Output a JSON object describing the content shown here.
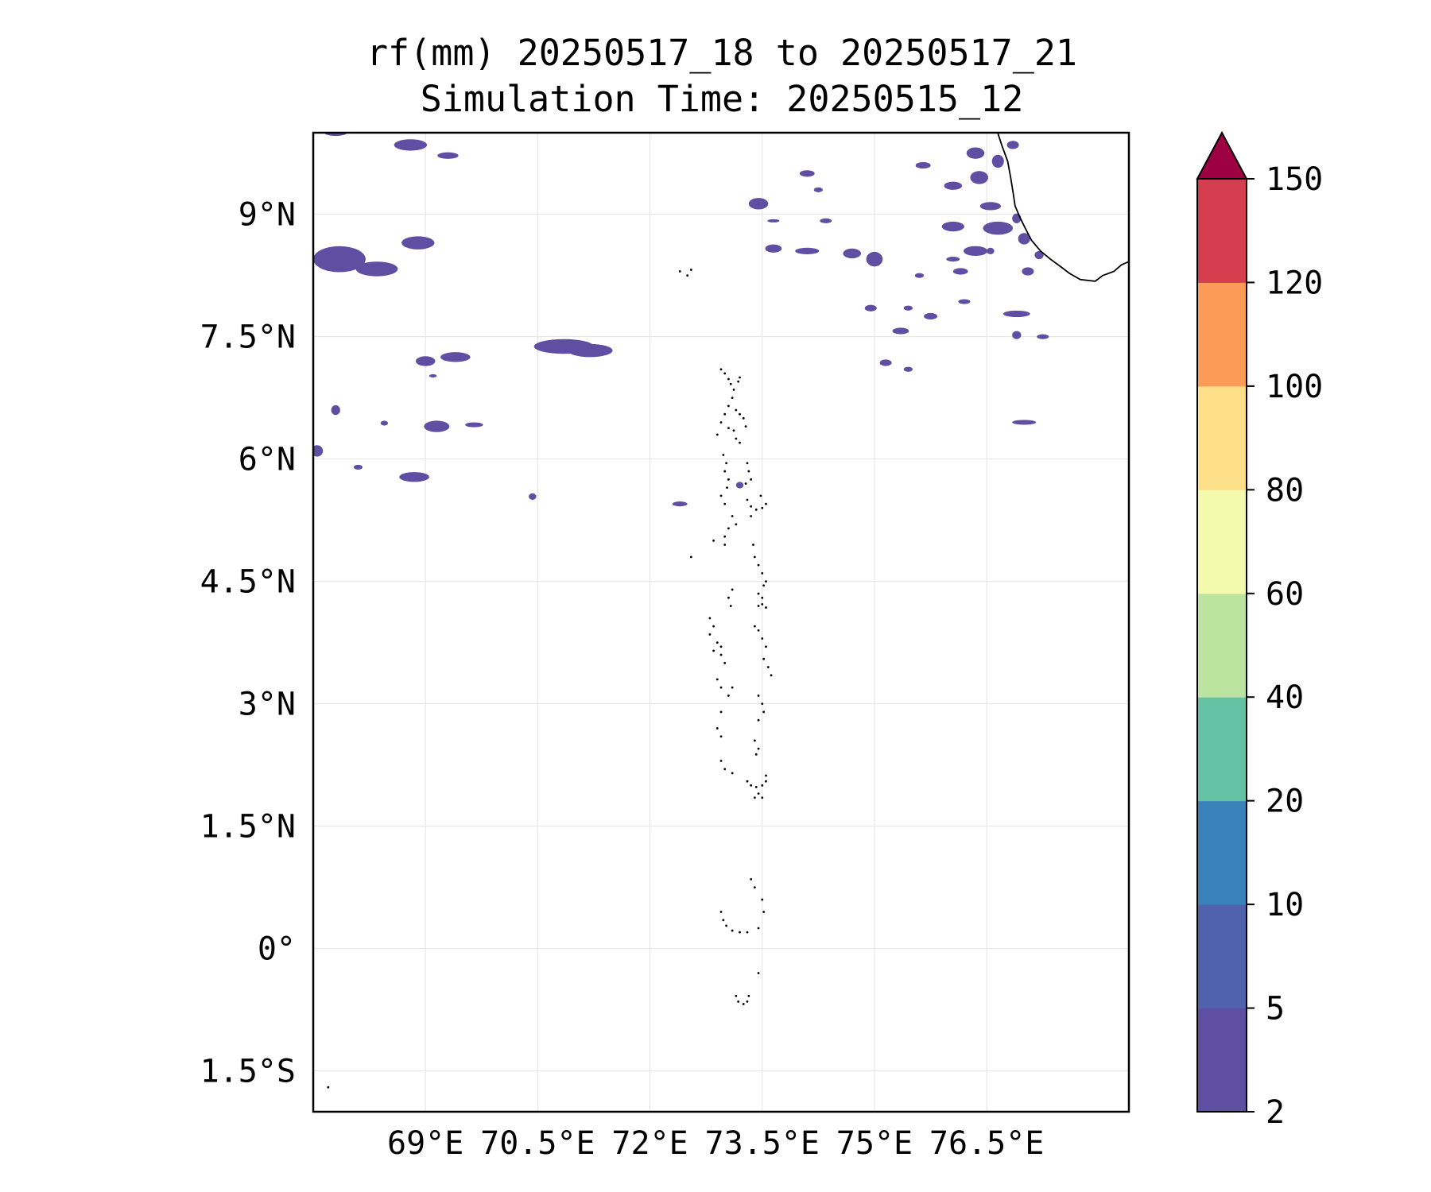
{
  "title": {
    "line1": "rf(mm) 20250517_18 to 20250517_21",
    "line2": "Simulation Time: 20250515_12"
  },
  "map": {
    "lon_range": [
      67.5,
      78.4
    ],
    "lat_range": [
      -2.0,
      10.0
    ],
    "x_ticks": [
      {
        "value": 69.0,
        "label": "69°E"
      },
      {
        "value": 70.5,
        "label": "70.5°E"
      },
      {
        "value": 72.0,
        "label": "72°E"
      },
      {
        "value": 73.5,
        "label": "73.5°E"
      },
      {
        "value": 75.0,
        "label": "75°E"
      },
      {
        "value": 76.5,
        "label": "76.5°E"
      }
    ],
    "y_ticks": [
      {
        "value": 9.0,
        "label": "9°N"
      },
      {
        "value": 7.5,
        "label": "7.5°N"
      },
      {
        "value": 6.0,
        "label": "6°N"
      },
      {
        "value": 4.5,
        "label": "4.5°N"
      },
      {
        "value": 3.0,
        "label": "3°N"
      },
      {
        "value": 1.5,
        "label": "1.5°N"
      },
      {
        "value": 0.0,
        "label": "0°"
      },
      {
        "value": -1.5,
        "label": "1.5°S"
      }
    ],
    "gridlines": true,
    "rain_color": "#5e4fa2",
    "rain_cells": [
      [
        67.8,
        10.0,
        0.15,
        0.04
      ],
      [
        68.8,
        9.85,
        0.22,
        0.07
      ],
      [
        69.3,
        9.72,
        0.14,
        0.04
      ],
      [
        67.85,
        8.45,
        0.35,
        0.16
      ],
      [
        68.35,
        8.33,
        0.28,
        0.09
      ],
      [
        68.9,
        8.65,
        0.22,
        0.08
      ],
      [
        70.85,
        7.38,
        0.4,
        0.09
      ],
      [
        71.2,
        7.33,
        0.3,
        0.08
      ],
      [
        69.0,
        7.2,
        0.13,
        0.06
      ],
      [
        69.4,
        7.25,
        0.2,
        0.06
      ],
      [
        69.15,
        6.4,
        0.17,
        0.07
      ],
      [
        69.65,
        6.42,
        0.12,
        0.03
      ],
      [
        68.85,
        5.78,
        0.2,
        0.06
      ],
      [
        68.1,
        5.9,
        0.06,
        0.03
      ],
      [
        67.55,
        6.1,
        0.08,
        0.07
      ],
      [
        67.8,
        6.6,
        0.06,
        0.06
      ],
      [
        68.45,
        6.44,
        0.05,
        0.03
      ],
      [
        69.1,
        7.02,
        0.05,
        0.02
      ],
      [
        70.43,
        5.54,
        0.05,
        0.04
      ],
      [
        72.4,
        5.45,
        0.1,
        0.03
      ],
      [
        73.2,
        5.68,
        0.05,
        0.04
      ],
      [
        73.45,
        9.13,
        0.13,
        0.07
      ],
      [
        74.1,
        9.5,
        0.1,
        0.04
      ],
      [
        74.25,
        9.3,
        0.06,
        0.03
      ],
      [
        74.35,
        8.92,
        0.08,
        0.03
      ],
      [
        73.65,
        8.92,
        0.08,
        0.02
      ],
      [
        73.65,
        8.58,
        0.11,
        0.05
      ],
      [
        74.1,
        8.55,
        0.16,
        0.04
      ],
      [
        74.7,
        8.52,
        0.12,
        0.06
      ],
      [
        75.0,
        8.45,
        0.11,
        0.09
      ],
      [
        75.45,
        7.85,
        0.06,
        0.03
      ],
      [
        74.95,
        7.85,
        0.08,
        0.04
      ],
      [
        75.35,
        7.57,
        0.11,
        0.04
      ],
      [
        75.75,
        7.75,
        0.09,
        0.04
      ],
      [
        75.15,
        7.18,
        0.08,
        0.04
      ],
      [
        75.45,
        7.1,
        0.06,
        0.03
      ],
      [
        75.6,
        8.25,
        0.06,
        0.03
      ],
      [
        76.35,
        9.75,
        0.12,
        0.07
      ],
      [
        76.05,
        9.35,
        0.12,
        0.05
      ],
      [
        76.4,
        9.45,
        0.12,
        0.08
      ],
      [
        75.65,
        9.6,
        0.1,
        0.04
      ],
      [
        76.85,
        9.85,
        0.08,
        0.05
      ],
      [
        76.65,
        9.65,
        0.08,
        0.08
      ],
      [
        76.55,
        9.1,
        0.14,
        0.05
      ],
      [
        76.65,
        8.83,
        0.2,
        0.08
      ],
      [
        76.05,
        8.85,
        0.15,
        0.06
      ],
      [
        76.35,
        8.55,
        0.16,
        0.06
      ],
      [
        76.05,
        8.45,
        0.09,
        0.03
      ],
      [
        76.15,
        8.3,
        0.1,
        0.04
      ],
      [
        76.55,
        8.55,
        0.05,
        0.04
      ],
      [
        77.0,
        8.7,
        0.08,
        0.07
      ],
      [
        76.9,
        8.95,
        0.06,
        0.06
      ],
      [
        77.05,
        8.3,
        0.08,
        0.05
      ],
      [
        77.2,
        8.5,
        0.06,
        0.05
      ],
      [
        76.9,
        7.78,
        0.18,
        0.04
      ],
      [
        77.25,
        7.5,
        0.08,
        0.03
      ],
      [
        76.9,
        7.52,
        0.06,
        0.05
      ],
      [
        76.2,
        7.93,
        0.08,
        0.03
      ],
      [
        77.0,
        6.45,
        0.16,
        0.03
      ]
    ],
    "coastline_points": [
      [
        76.65,
        9.99
      ],
      [
        76.7,
        9.85
      ],
      [
        76.78,
        9.65
      ],
      [
        76.82,
        9.45
      ],
      [
        76.85,
        9.28
      ],
      [
        76.88,
        9.1
      ],
      [
        76.95,
        8.95
      ],
      [
        77.02,
        8.82
      ],
      [
        77.1,
        8.68
      ],
      [
        77.22,
        8.55
      ],
      [
        77.35,
        8.45
      ],
      [
        77.5,
        8.35
      ],
      [
        77.6,
        8.28
      ],
      [
        77.75,
        8.2
      ],
      [
        77.95,
        8.18
      ],
      [
        78.05,
        8.25
      ],
      [
        78.2,
        8.3
      ],
      [
        78.3,
        8.38
      ],
      [
        78.4,
        8.42
      ]
    ],
    "island_points": [
      [
        72.95,
        7.1
      ],
      [
        73.0,
        7.05
      ],
      [
        73.05,
        6.98
      ],
      [
        73.08,
        6.92
      ],
      [
        73.12,
        6.85
      ],
      [
        73.18,
        6.95
      ],
      [
        73.2,
        7.0
      ],
      [
        73.1,
        6.75
      ],
      [
        73.05,
        6.65
      ],
      [
        73.15,
        6.6
      ],
      [
        73.2,
        6.55
      ],
      [
        73.25,
        6.5
      ],
      [
        73.28,
        6.4
      ],
      [
        73.0,
        6.55
      ],
      [
        72.95,
        6.45
      ],
      [
        73.05,
        6.38
      ],
      [
        73.12,
        6.35
      ],
      [
        73.15,
        6.25
      ],
      [
        73.2,
        6.2
      ],
      [
        72.9,
        6.3
      ],
      [
        72.98,
        6.05
      ],
      [
        73.02,
        5.95
      ],
      [
        73.0,
        5.85
      ],
      [
        73.05,
        5.75
      ],
      [
        73.03,
        5.65
      ],
      [
        72.95,
        5.55
      ],
      [
        73.0,
        5.45
      ],
      [
        73.3,
        5.95
      ],
      [
        73.32,
        5.85
      ],
      [
        73.35,
        5.75
      ],
      [
        73.28,
        5.7
      ],
      [
        73.3,
        5.5
      ],
      [
        73.35,
        5.42
      ],
      [
        73.42,
        5.38
      ],
      [
        73.5,
        5.4
      ],
      [
        73.55,
        5.45
      ],
      [
        73.48,
        5.55
      ],
      [
        73.35,
        5.3
      ],
      [
        73.1,
        5.3
      ],
      [
        73.15,
        5.2
      ],
      [
        73.05,
        5.15
      ],
      [
        73.0,
        5.05
      ],
      [
        72.85,
        5.0
      ],
      [
        73.0,
        4.95
      ],
      [
        73.38,
        4.95
      ],
      [
        72.55,
        4.8
      ],
      [
        73.4,
        4.8
      ],
      [
        73.45,
        4.7
      ],
      [
        73.5,
        4.6
      ],
      [
        73.55,
        4.5
      ],
      [
        73.52,
        4.45
      ],
      [
        73.45,
        4.35
      ],
      [
        73.5,
        4.3
      ],
      [
        73.5,
        4.22
      ],
      [
        73.45,
        4.2
      ],
      [
        73.55,
        4.18
      ],
      [
        73.1,
        4.4
      ],
      [
        73.05,
        4.3
      ],
      [
        73.08,
        4.2
      ],
      [
        72.8,
        4.05
      ],
      [
        72.85,
        3.95
      ],
      [
        72.8,
        3.85
      ],
      [
        72.9,
        3.75
      ],
      [
        72.95,
        3.7
      ],
      [
        72.85,
        3.65
      ],
      [
        73.4,
        3.95
      ],
      [
        73.45,
        3.9
      ],
      [
        73.5,
        3.8
      ],
      [
        73.55,
        3.7
      ],
      [
        73.52,
        3.55
      ],
      [
        73.58,
        3.45
      ],
      [
        73.62,
        3.35
      ],
      [
        72.95,
        3.6
      ],
      [
        73.0,
        3.5
      ],
      [
        72.9,
        3.3
      ],
      [
        72.95,
        3.2
      ],
      [
        73.05,
        3.1
      ],
      [
        73.1,
        3.2
      ],
      [
        73.45,
        3.1
      ],
      [
        73.5,
        3.0
      ],
      [
        73.52,
        2.9
      ],
      [
        73.45,
        2.8
      ],
      [
        72.95,
        2.9
      ],
      [
        72.9,
        2.7
      ],
      [
        72.95,
        2.6
      ],
      [
        73.4,
        2.55
      ],
      [
        73.45,
        2.45
      ],
      [
        73.42,
        2.38
      ],
      [
        72.95,
        2.3
      ],
      [
        73.0,
        2.2
      ],
      [
        73.1,
        2.15
      ],
      [
        73.3,
        2.05
      ],
      [
        73.35,
        2.0
      ],
      [
        73.42,
        1.98
      ],
      [
        73.5,
        2.0
      ],
      [
        73.55,
        2.05
      ],
      [
        73.55,
        2.12
      ],
      [
        73.45,
        1.9
      ],
      [
        73.4,
        1.85
      ],
      [
        73.5,
        1.85
      ],
      [
        73.35,
        0.85
      ],
      [
        73.4,
        0.75
      ],
      [
        73.5,
        0.6
      ],
      [
        73.52,
        0.45
      ],
      [
        72.95,
        0.45
      ],
      [
        72.98,
        0.35
      ],
      [
        73.02,
        0.28
      ],
      [
        73.1,
        0.22
      ],
      [
        73.2,
        0.2
      ],
      [
        73.3,
        0.2
      ],
      [
        73.45,
        0.25
      ],
      [
        73.45,
        -0.3
      ],
      [
        73.15,
        -0.58
      ],
      [
        73.18,
        -0.65
      ],
      [
        73.25,
        -0.68
      ],
      [
        73.3,
        -0.65
      ],
      [
        73.32,
        -0.58
      ],
      [
        72.4,
        8.3
      ],
      [
        72.5,
        8.25
      ],
      [
        72.55,
        8.32
      ],
      [
        67.7,
        -1.7
      ]
    ]
  },
  "colorbar": {
    "boundaries": [
      2,
      5,
      10,
      20,
      40,
      60,
      80,
      100,
      120,
      150
    ],
    "tick_labels": [
      "2",
      "5",
      "10",
      "20",
      "40",
      "60",
      "80",
      "100",
      "120",
      "150"
    ],
    "colors": [
      "#5e4fa2",
      "#5062ab",
      "#3a80b9",
      "#66c2a5",
      "#bde3a0",
      "#f4faad",
      "#fee08b",
      "#fa9c58",
      "#d53e4f"
    ],
    "extend_color": "#9e0142"
  }
}
